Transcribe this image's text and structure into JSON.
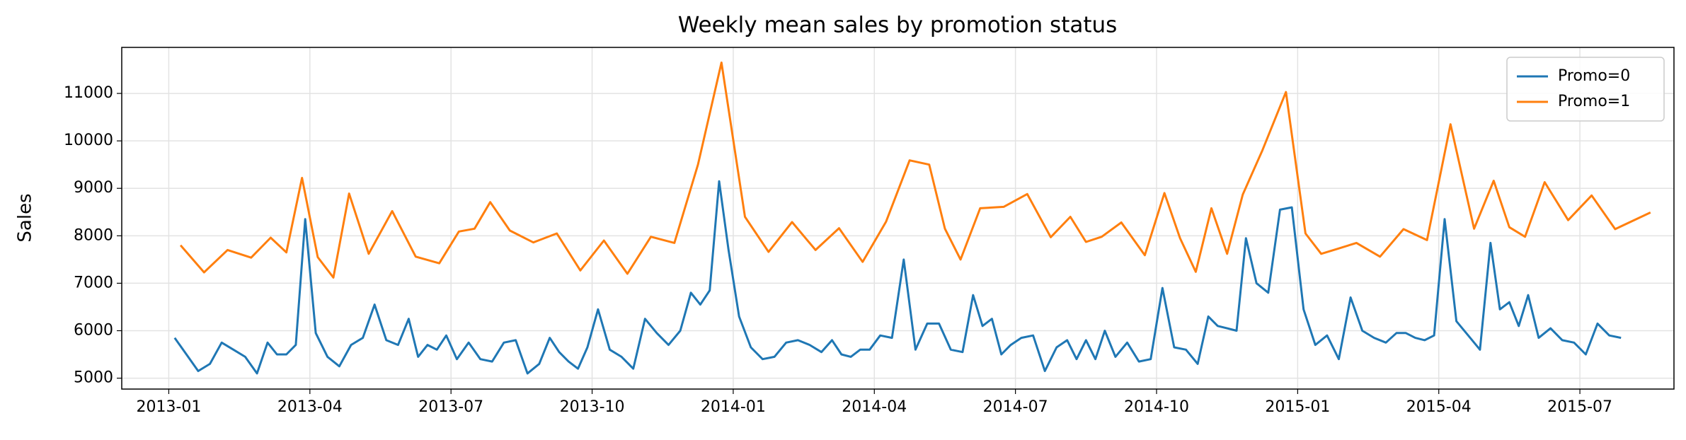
{
  "chart_data": {
    "type": "line",
    "title": "Weekly mean sales by promotion status",
    "ylabel": "Sales",
    "ylim": [
      4770,
      11970
    ],
    "yticks": [
      5000,
      6000,
      7000,
      8000,
      9000,
      10000,
      11000
    ],
    "xlim": [
      "2012-12",
      "2015-09"
    ],
    "xticks": [
      "2013-01",
      "2013-04",
      "2013-07",
      "2013-10",
      "2014-01",
      "2014-04",
      "2014-07",
      "2014-10",
      "2015-01",
      "2015-04",
      "2015-07"
    ],
    "grid": true,
    "legend": "upper right",
    "series": [
      {
        "name": "Promo=0",
        "color": "#1f77b4",
        "x": [
          "2013-01",
          "2013-01",
          "2013-01",
          "2013-01",
          "2013-02",
          "2013-02",
          "2013-02",
          "2013-02",
          "2013-03",
          "2013-03",
          "2013-03",
          "2013-03",
          "2013-03",
          "2013-04",
          "2013-04",
          "2013-04",
          "2013-04",
          "2013-05",
          "2013-05",
          "2013-05",
          "2013-05",
          "2013-06",
          "2013-06",
          "2013-06",
          "2013-06",
          "2013-06",
          "2013-07",
          "2013-07",
          "2013-07",
          "2013-07",
          "2013-08",
          "2013-08",
          "2013-08",
          "2013-08",
          "2013-09",
          "2013-09",
          "2013-09",
          "2013-09",
          "2013-09",
          "2013-10",
          "2013-10",
          "2013-10",
          "2013-10",
          "2013-11",
          "2013-11",
          "2013-11",
          "2013-11",
          "2013-12",
          "2013-12",
          "2013-12",
          "2013-12",
          "2013-12",
          "2014-01",
          "2014-01",
          "2014-01",
          "2014-01",
          "2014-02",
          "2014-02",
          "2014-02",
          "2014-02",
          "2014-03",
          "2014-03",
          "2014-03",
          "2014-03",
          "2014-03",
          "2014-04",
          "2014-04",
          "2014-04",
          "2014-04",
          "2014-05",
          "2014-05",
          "2014-05",
          "2014-05",
          "2014-06",
          "2014-06",
          "2014-06",
          "2014-06",
          "2014-06",
          "2014-07",
          "2014-07",
          "2014-07",
          "2014-07",
          "2014-08",
          "2014-08",
          "2014-08",
          "2014-08",
          "2014-08",
          "2014-09",
          "2014-09",
          "2014-09",
          "2014-09",
          "2014-10",
          "2014-10",
          "2014-10",
          "2014-10",
          "2014-11",
          "2014-11",
          "2014-11",
          "2014-11",
          "2014-11",
          "2014-12",
          "2014-12",
          "2014-12",
          "2014-12",
          "2015-01",
          "2015-01",
          "2015-01",
          "2015-01",
          "2015-02",
          "2015-02",
          "2015-02",
          "2015-02",
          "2015-03",
          "2015-03",
          "2015-03",
          "2015-03",
          "2015-03",
          "2015-04",
          "2015-04",
          "2015-04",
          "2015-04",
          "2015-05",
          "2015-05",
          "2015-05",
          "2015-05",
          "2015-05",
          "2015-06",
          "2015-06",
          "2015-06",
          "2015-06",
          "2015-07",
          "2015-07",
          "2015-07",
          "2015-07"
        ],
        "values": [
          5850,
          5500,
          5150,
          5300,
          5750,
          5600,
          5450,
          5100,
          5750,
          5500,
          5500,
          5700,
          8350,
          5950,
          5450,
          5250,
          5700,
          5850,
          6550,
          5800,
          5700,
          6250,
          5450,
          5700,
          5600,
          5900,
          5400,
          5750,
          5400,
          5350,
          5750,
          5800,
          5100,
          5300,
          5850,
          5550,
          5350,
          5200,
          5650,
          6450,
          5600,
          5450,
          5200,
          6250,
          5950,
          5700,
          6000,
          6800,
          6550,
          6850,
          9150,
          7700,
          6300,
          5650,
          5400,
          5450,
          5750,
          5800,
          5700,
          5550,
          5800,
          5500,
          5450,
          5600,
          5600,
          5900,
          5850,
          7500,
          5600,
          6150,
          6150,
          5600,
          5550,
          6750,
          6100,
          6250,
          5500,
          5700,
          5850,
          5900,
          5150,
          5650,
          5800,
          5400,
          5800,
          5400,
          6000,
          5450,
          5750,
          5350,
          5400,
          6900,
          5650,
          5600,
          5300,
          6300,
          6100,
          6050,
          6000,
          7950,
          7000,
          6800,
          8550,
          8600,
          6450,
          5700,
          5900,
          5400,
          6700,
          6000,
          5850,
          5750,
          5950,
          5950,
          5850,
          5800,
          5900,
          8350,
          6200,
          5900,
          5600,
          7850,
          6450,
          6600,
          6100,
          6750,
          5850,
          6050,
          5800,
          5750,
          5500,
          6150,
          5900,
          5850
        ]
      },
      {
        "name": "Promo=1",
        "color": "#ff7f0e",
        "x": [
          "2013-01",
          "2013-01",
          "2013-02",
          "2013-02",
          "2013-03",
          "2013-03",
          "2013-03",
          "2013-04",
          "2013-04",
          "2013-04",
          "2013-05",
          "2013-05",
          "2013-06",
          "2013-06",
          "2013-07",
          "2013-07",
          "2013-07",
          "2013-08",
          "2013-08",
          "2013-09",
          "2013-09",
          "2013-10",
          "2013-10",
          "2013-11",
          "2013-11",
          "2013-12",
          "2013-12",
          "2014-01",
          "2014-01",
          "2014-02",
          "2014-02",
          "2014-03",
          "2014-03",
          "2014-04",
          "2014-04",
          "2014-05",
          "2014-05",
          "2014-05",
          "2014-06",
          "2014-06",
          "2014-07",
          "2014-07",
          "2014-08",
          "2014-08",
          "2014-08",
          "2014-09",
          "2014-09",
          "2014-10",
          "2014-10",
          "2014-10",
          "2014-11",
          "2014-11",
          "2014-11",
          "2014-12",
          "2014-12",
          "2015-01",
          "2015-01",
          "2015-01",
          "2015-02",
          "2015-02",
          "2015-03",
          "2015-03",
          "2015-04",
          "2015-04",
          "2015-05",
          "2015-05",
          "2015-05",
          "2015-06",
          "2015-06",
          "2015-07",
          "2015-07",
          "2015-08"
        ],
        "values": [
          7800,
          7230,
          7700,
          7540,
          7960,
          7650,
          9220,
          7550,
          7120,
          8890,
          7620,
          8520,
          7560,
          7420,
          8090,
          8150,
          8710,
          8110,
          7860,
          8050,
          7270,
          7900,
          7200,
          7980,
          7850,
          9500,
          11650,
          8400,
          7660,
          8290,
          7700,
          8160,
          7450,
          8300,
          9590,
          9500,
          8150,
          7500,
          8580,
          8610,
          8880,
          7970,
          8400,
          7870,
          7980,
          8280,
          7590,
          8900,
          7950,
          7240,
          8580,
          7620,
          8870,
          9800,
          11030,
          8050,
          7620,
          7720,
          7850,
          7560,
          8140,
          7910,
          10350,
          8150,
          9160,
          8180,
          7980,
          9130,
          8330,
          8850,
          8140,
          8490
        ]
      }
    ]
  }
}
